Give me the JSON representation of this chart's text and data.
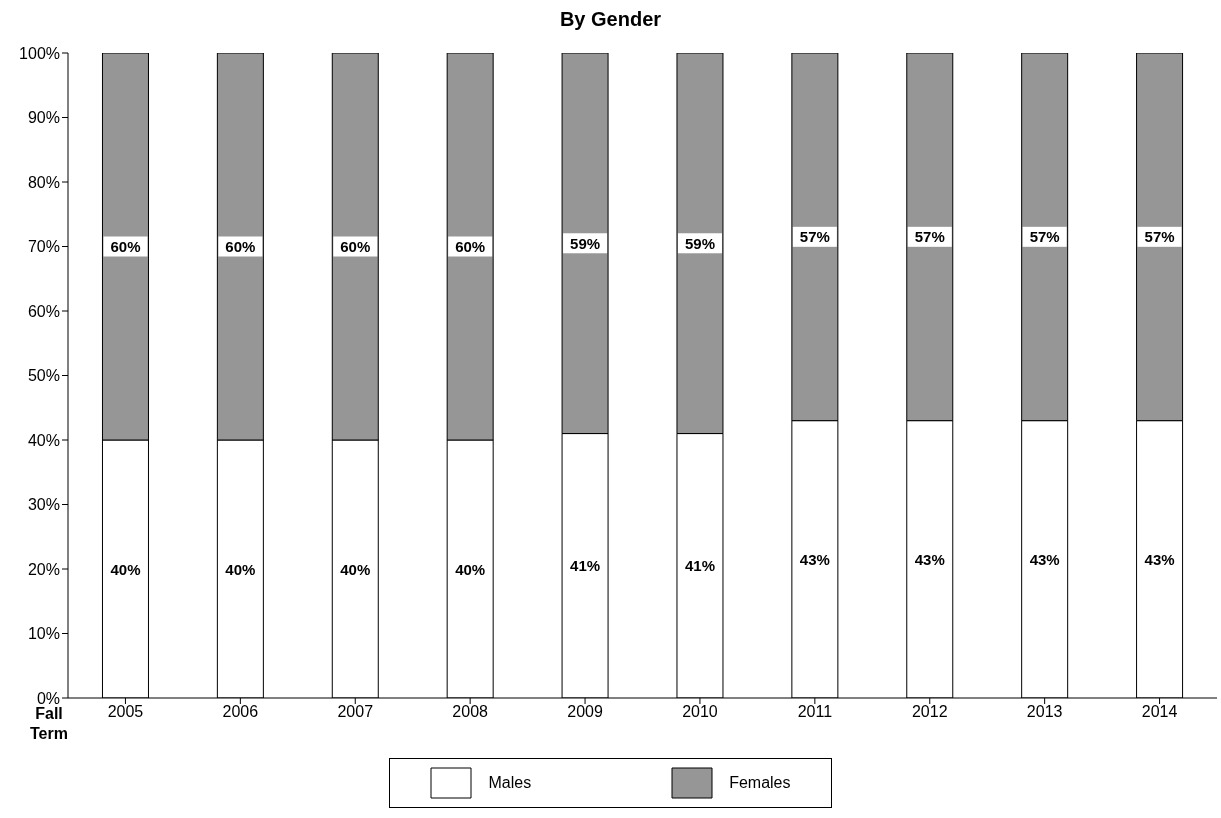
{
  "chart_data": {
    "type": "bar",
    "title": "By Gender",
    "xlabel": "Fall Term",
    "stacked": true,
    "categories": [
      "2005",
      "2006",
      "2007",
      "2008",
      "2009",
      "2010",
      "2011",
      "2012",
      "2013",
      "2014"
    ],
    "series": [
      {
        "name": "Males",
        "color": "#ffffff",
        "values": [
          40,
          40,
          40,
          40,
          41,
          41,
          43,
          43,
          43,
          43
        ],
        "value_labels": [
          "40%",
          "40%",
          "40%",
          "40%",
          "41%",
          "41%",
          "43%",
          "43%",
          "43%",
          "43%"
        ]
      },
      {
        "name": "Females",
        "color": "#969696",
        "values": [
          60,
          60,
          60,
          60,
          59,
          59,
          57,
          57,
          57,
          57
        ],
        "value_labels": [
          "60%",
          "60%",
          "60%",
          "60%",
          "59%",
          "59%",
          "57%",
          "57%",
          "57%",
          "57%"
        ]
      }
    ],
    "ylim": [
      0,
      100
    ],
    "yticks": [
      {
        "value": 0,
        "label": "0%"
      },
      {
        "value": 10,
        "label": "10%"
      },
      {
        "value": 20,
        "label": "20%"
      },
      {
        "value": 30,
        "label": "30%"
      },
      {
        "value": 40,
        "label": "40%"
      },
      {
        "value": 50,
        "label": "50%"
      },
      {
        "value": 60,
        "label": "60%"
      },
      {
        "value": 70,
        "label": "70%"
      },
      {
        "value": 80,
        "label": "80%"
      },
      {
        "value": 90,
        "label": "90%"
      },
      {
        "value": 100,
        "label": "100%"
      }
    ],
    "grid": false,
    "legend": "bottom"
  }
}
